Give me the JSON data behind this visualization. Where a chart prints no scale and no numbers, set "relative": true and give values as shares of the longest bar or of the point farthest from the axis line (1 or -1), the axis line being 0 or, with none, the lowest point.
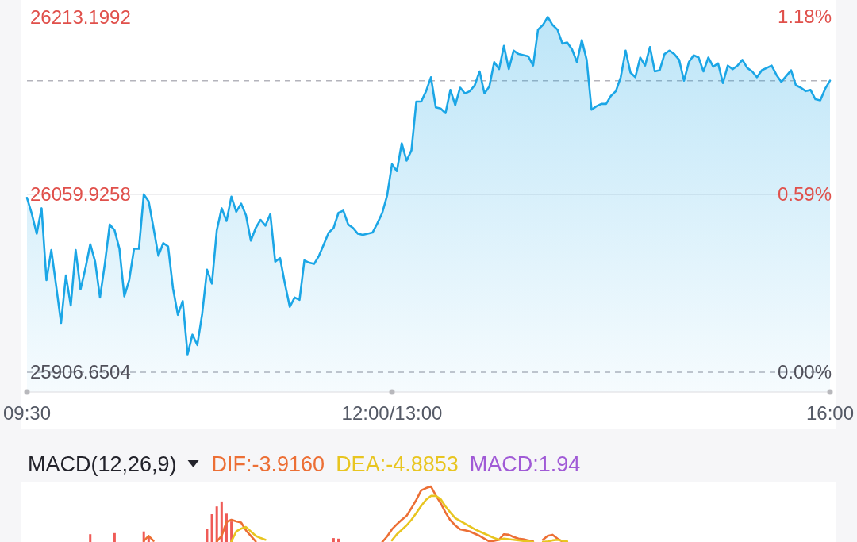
{
  "chart_data": [
    {
      "type": "area",
      "color": "#1ba6e6",
      "categories": [
        "09:30",
        null,
        null,
        null,
        null,
        null,
        null,
        null,
        null,
        null,
        null,
        null,
        null,
        null,
        null,
        null,
        null,
        null,
        null,
        null,
        null,
        null,
        null,
        null,
        null,
        null,
        null,
        null,
        null,
        null,
        null,
        null,
        null,
        null,
        null,
        null,
        null,
        null,
        null,
        null,
        null,
        null,
        null,
        null,
        null,
        null,
        null,
        null,
        null,
        null,
        null,
        null,
        null,
        null,
        null,
        null,
        null,
        null,
        null,
        null,
        null,
        null,
        null,
        null,
        null,
        null,
        null,
        null,
        null,
        null,
        null,
        null,
        null,
        null,
        null,
        "12:00/13:00",
        null,
        null,
        null,
        null,
        null,
        null,
        null,
        null,
        null,
        null,
        null,
        null,
        null,
        null,
        null,
        null,
        null,
        null,
        null,
        null,
        null,
        null,
        null,
        null,
        null,
        null,
        null,
        null,
        null,
        null,
        null,
        null,
        null,
        null,
        null,
        null,
        null,
        null,
        null,
        null,
        null,
        null,
        null,
        null,
        null,
        null,
        null,
        null,
        null,
        null,
        null,
        null,
        null,
        null,
        null,
        null,
        null,
        null,
        null,
        null,
        null,
        null,
        null,
        null,
        null,
        null,
        null,
        null,
        null,
        null,
        null,
        null,
        null,
        null,
        null,
        null,
        null,
        null,
        null,
        null,
        null,
        null,
        null,
        null,
        null,
        null,
        null,
        null,
        null,
        "16:00"
      ],
      "values": [
        26057,
        26043,
        26026,
        26048,
        25986,
        26012,
        25981,
        25949,
        25990,
        25964,
        26012,
        25978,
        25996,
        26017,
        26002,
        25971,
        26000,
        26034,
        26029,
        26013,
        25972,
        25986,
        26013,
        26013,
        26060,
        26054,
        26031,
        26007,
        26018,
        26015,
        25979,
        25956,
        25968,
        25922,
        25939,
        25930,
        25957,
        25995,
        25983,
        26029,
        26048,
        26037,
        26058,
        26045,
        26052,
        26042,
        26020,
        26031,
        26038,
        26033,
        26043,
        26002,
        26005,
        25983,
        25963,
        25971,
        25969,
        26003,
        26001,
        26000,
        26007,
        26017,
        26027,
        26031,
        26044,
        26046,
        26034,
        26031,
        26026,
        26025,
        26026,
        26027,
        26035,
        26044,
        26059,
        26086,
        26080,
        26104,
        26089,
        26098,
        26140,
        26140,
        26149,
        26161,
        26135,
        26134,
        26130,
        26150,
        26137,
        26152,
        26147,
        26149,
        26154,
        26166,
        26147,
        26153,
        26174,
        26168,
        26188,
        26168,
        26184,
        26181,
        26180,
        26179,
        26171,
        26202,
        26206,
        26213,
        26206,
        26202,
        26190,
        26191,
        26185,
        26174,
        26193,
        26176,
        26133,
        26136,
        26138,
        26138,
        26145,
        26149,
        26161,
        26184,
        26165,
        26161,
        26178,
        26171,
        26187,
        26166,
        26167,
        26181,
        26184,
        26181,
        26176,
        26158,
        26174,
        26180,
        26178,
        26166,
        26178,
        26170,
        26173,
        26156,
        26171,
        26168,
        26171,
        26176,
        26169,
        26166,
        26161,
        26167,
        26169,
        26171,
        26163,
        26157,
        26162,
        26167,
        26154,
        26152,
        26149,
        26150,
        26142,
        26141,
        26151,
        26158
      ],
      "ylim": [
        25889.5,
        26227.6
      ],
      "yticks": [
        25906.6504,
        26059.9258,
        26213.1992
      ],
      "y2lim": [
        -0.066,
        1.235
      ],
      "y2ticks": [
        {
          "value": 0,
          "label": "0.00%"
        },
        {
          "value": 0.59,
          "label": "0.59%"
        },
        {
          "value": 1.18,
          "label": "1.18%"
        }
      ],
      "ref_lines": [
        {
          "axis": "y",
          "value": 25906.6504,
          "line_style": "dashed",
          "color": "#b4b4bc"
        },
        {
          "axis": "y",
          "value": 26059.9258,
          "line_style": "solid",
          "color": "#dcdce0"
        },
        {
          "axis": "y",
          "value": 26158,
          "line_style": "dashed",
          "color": "#b4b4bc"
        }
      ]
    },
    {
      "type": "line",
      "title": "MACD(12,26,9)",
      "relative": true,
      "legend": "top",
      "annotations": [
        "MACD:1.94"
      ],
      "categories": [
        null,
        null,
        null,
        null,
        null,
        null,
        null,
        null,
        null,
        null,
        null,
        null,
        null,
        null,
        null,
        null,
        null,
        null,
        null,
        null,
        null,
        null,
        null,
        null,
        null,
        null,
        null,
        null,
        null,
        null,
        null,
        null,
        null,
        null,
        null,
        null,
        null,
        null,
        null,
        null,
        null,
        null,
        null,
        null,
        null,
        null,
        null,
        null,
        null,
        null,
        null,
        null,
        null,
        null,
        null,
        null,
        null,
        null,
        null,
        null,
        null,
        null,
        null,
        null,
        null,
        null,
        null,
        null,
        null,
        null,
        null,
        null,
        null,
        null,
        null,
        null,
        null,
        null,
        null,
        null,
        null,
        null,
        null,
        null,
        null,
        null,
        null,
        null,
        null,
        null,
        null,
        null,
        null,
        null,
        null,
        null,
        null,
        null,
        null,
        null,
        null,
        null,
        null,
        null,
        null,
        null,
        null,
        null,
        null,
        null,
        null,
        null,
        null,
        null,
        null,
        null,
        null,
        null,
        null,
        null,
        null,
        null,
        null,
        null,
        null,
        null,
        null,
        null,
        null,
        null,
        null,
        null,
        null,
        null,
        null,
        null,
        null,
        null,
        null,
        null,
        null,
        null,
        null,
        null,
        null,
        null,
        null,
        null,
        null,
        null,
        null,
        null,
        null,
        null,
        null,
        null,
        null,
        null,
        null,
        null,
        null,
        null,
        null,
        null,
        null,
        null
      ],
      "series": [
        {
          "type": "bar",
          "color": "#ef5b57",
          "values": [
            null,
            null,
            null,
            null,
            null,
            null,
            null,
            null,
            null,
            null,
            null,
            null,
            null,
            0.14,
            null,
            null,
            null,
            null,
            0.16,
            null,
            null,
            null,
            null,
            null,
            0.19,
            0.11,
            null,
            null,
            null,
            null,
            null,
            null,
            null,
            null,
            null,
            null,
            null,
            0.23,
            0.5,
            0.64,
            0.73,
            0.51,
            0.37,
            null,
            null,
            null,
            null,
            null,
            null,
            null,
            null,
            null,
            null,
            null,
            null,
            null,
            null,
            null,
            null,
            null,
            null,
            null,
            null,
            0.07,
            0.06,
            null,
            null,
            null,
            null,
            null,
            null,
            null,
            null,
            null,
            null,
            null,
            null,
            null,
            null,
            null,
            null,
            null,
            null,
            null,
            null,
            null,
            null,
            null,
            null,
            null,
            null,
            null,
            null,
            null,
            null,
            null,
            null,
            null,
            null,
            null,
            null,
            null,
            null,
            null,
            null,
            null,
            null,
            null,
            null,
            null,
            null,
            null,
            null,
            null,
            null,
            null,
            null,
            null,
            null,
            null,
            null,
            null,
            null,
            null,
            null,
            null,
            null,
            null,
            null,
            null,
            null,
            null,
            null,
            null,
            null,
            null,
            null,
            null,
            null,
            null,
            null,
            null,
            null,
            null,
            null,
            null,
            null,
            null,
            null,
            null,
            null,
            null,
            null,
            null,
            null,
            null,
            null,
            null,
            null,
            null,
            null,
            null,
            null,
            null,
            null,
            null
          ]
        },
        {
          "name": "DIF:-3.9160",
          "color": "#ec6f35",
          "values": [
            null,
            null,
            null,
            null,
            null,
            null,
            null,
            null,
            null,
            null,
            null,
            null,
            null,
            null,
            null,
            null,
            null,
            null,
            null,
            null,
            null,
            null,
            null,
            null,
            0.02,
            0.11,
            0.02,
            null,
            null,
            null,
            null,
            null,
            null,
            null,
            null,
            null,
            null,
            null,
            null,
            0.01,
            0.11,
            0.36,
            0.4,
            0.37,
            0.35,
            0.21,
            0.11,
            0.01,
            null,
            null,
            null,
            null,
            null,
            null,
            null,
            null,
            null,
            null,
            null,
            null,
            null,
            null,
            null,
            null,
            null,
            null,
            null,
            null,
            null,
            null,
            null,
            null,
            null,
            0,
            0.1,
            0.23,
            0.32,
            0.4,
            0.47,
            0.61,
            0.76,
            0.93,
            0.97,
            1,
            0.84,
            0.7,
            0.53,
            0.39,
            0.3,
            0.23,
            0.21,
            0.19,
            0.15,
            0.11,
            0.06,
            0.01,
            0.02,
            0.04,
            0.14,
            0.13,
            0.09,
            0.06,
            0.05,
            0.03,
            0.01,
            null,
            0.04,
            0.11,
            0.13,
            0.06,
            0.01,
            null,
            null,
            null,
            null,
            null,
            null,
            null,
            null,
            null,
            null,
            null,
            null,
            null,
            null,
            null,
            null,
            null,
            null,
            null,
            null,
            null,
            null,
            null,
            null,
            null,
            null,
            null,
            null,
            null,
            null,
            null,
            null,
            null,
            null,
            null,
            null,
            null,
            null,
            null,
            null,
            null,
            null,
            null,
            null,
            null,
            null,
            null,
            null,
            null,
            null,
            null,
            null,
            null,
            null,
            null
          ]
        },
        {
          "name": "DEA:-4.8853",
          "color": "#e8c520",
          "values": [
            null,
            null,
            null,
            null,
            null,
            null,
            null,
            null,
            null,
            null,
            null,
            null,
            null,
            null,
            null,
            null,
            null,
            null,
            null,
            null,
            null,
            null,
            null,
            null,
            null,
            null,
            null,
            null,
            null,
            null,
            null,
            null,
            null,
            null,
            null,
            null,
            null,
            null,
            null,
            null,
            null,
            null,
            0.01,
            0.19,
            0.24,
            0.27,
            0.19,
            0.11,
            0.07,
            0.04,
            null,
            null,
            null,
            null,
            null,
            null,
            null,
            null,
            null,
            null,
            null,
            null,
            null,
            null,
            null,
            null,
            null,
            null,
            null,
            null,
            null,
            null,
            null,
            null,
            null,
            0.03,
            0.14,
            0.22,
            0.3,
            0.4,
            0.52,
            0.65,
            0.76,
            0.83,
            0.83,
            0.77,
            0.64,
            0.53,
            0.43,
            0.38,
            0.33,
            0.28,
            0.23,
            0.19,
            0.15,
            0.11,
            0.07,
            0.04,
            0.06,
            0.05,
            0.04,
            0.03,
            0.02,
            0.01,
            0,
            null,
            0,
            0.01,
            0.03,
            0.04,
            0.02,
            0.01,
            null,
            null,
            null,
            null,
            null,
            null,
            null,
            null,
            null,
            null,
            null,
            null,
            null,
            null,
            null,
            null,
            null,
            null,
            null,
            null,
            null,
            null,
            null,
            null,
            null,
            null,
            null,
            null,
            null,
            null,
            null,
            null,
            null,
            null,
            null,
            null,
            null,
            null,
            null,
            null,
            null,
            null,
            null,
            null,
            null,
            null,
            null,
            null,
            null,
            null,
            null,
            null,
            null,
            null
          ]
        }
      ]
    }
  ]
}
